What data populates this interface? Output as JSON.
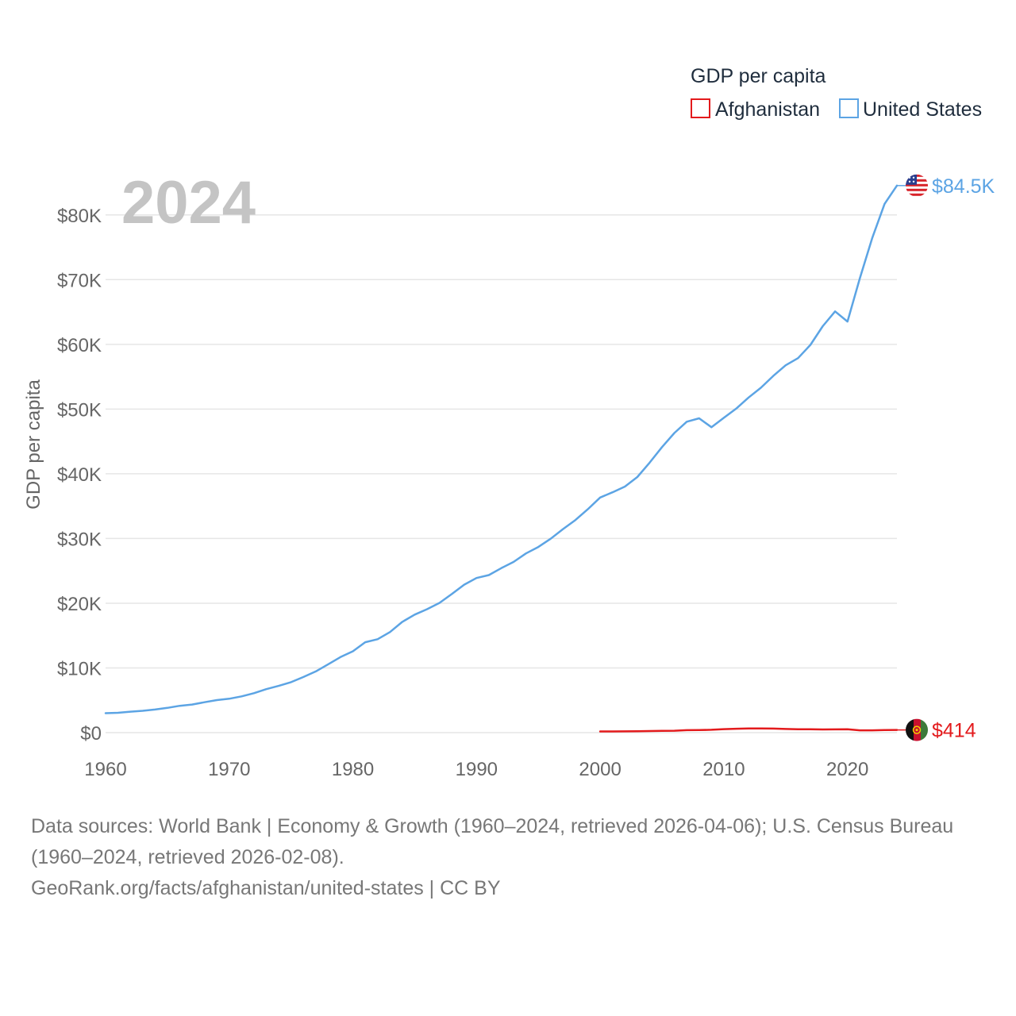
{
  "chart_data": {
    "type": "line",
    "title": "",
    "year_badge": "2024",
    "ylabel": "GDP per capita",
    "xlabel": "",
    "xlim": [
      1960,
      2024
    ],
    "ylim": [
      0,
      85000
    ],
    "x_ticks": [
      {
        "value": 1960,
        "label": "1960"
      },
      {
        "value": 1970,
        "label": "1970"
      },
      {
        "value": 1980,
        "label": "1980"
      },
      {
        "value": 1990,
        "label": "1990"
      },
      {
        "value": 2000,
        "label": "2000"
      },
      {
        "value": 2010,
        "label": "2010"
      },
      {
        "value": 2020,
        "label": "2020"
      }
    ],
    "y_ticks": [
      {
        "value": 0,
        "label": "$0"
      },
      {
        "value": 10000,
        "label": "$10K"
      },
      {
        "value": 20000,
        "label": "$20K"
      },
      {
        "value": 30000,
        "label": "$30K"
      },
      {
        "value": 40000,
        "label": "$40K"
      },
      {
        "value": 50000,
        "label": "$50K"
      },
      {
        "value": 60000,
        "label": "$60K"
      },
      {
        "value": 70000,
        "label": "$70K"
      },
      {
        "value": 80000,
        "label": "$80K"
      }
    ],
    "legend": {
      "title": "GDP per capita",
      "position": "top-right"
    },
    "series": [
      {
        "name": "Afghanistan",
        "color": "#e31a1c",
        "end_label": "$414",
        "flag_icon": "afghanistan-flag-icon",
        "x": [
          2000,
          2001,
          2002,
          2003,
          2004,
          2005,
          2006,
          2007,
          2008,
          2009,
          2010,
          2011,
          2012,
          2013,
          2014,
          2015,
          2016,
          2017,
          2018,
          2019,
          2020,
          2021,
          2022,
          2023,
          2024
        ],
        "values": [
          180,
          180,
          200,
          220,
          240,
          270,
          290,
          380,
          390,
          440,
          540,
          600,
          650,
          640,
          620,
          560,
          520,
          520,
          490,
          500,
          510,
          360,
          350,
          410,
          414
        ]
      },
      {
        "name": "United States",
        "color": "#5ca4e4",
        "end_label": "$84.5K",
        "flag_icon": "united-states-flag-icon",
        "x": [
          1960,
          1961,
          1962,
          1963,
          1964,
          1965,
          1966,
          1967,
          1968,
          1969,
          1970,
          1971,
          1972,
          1973,
          1974,
          1975,
          1976,
          1977,
          1978,
          1979,
          1980,
          1981,
          1982,
          1983,
          1984,
          1985,
          1986,
          1987,
          1988,
          1989,
          1990,
          1991,
          1992,
          1993,
          1994,
          1995,
          1996,
          1997,
          1998,
          1999,
          2000,
          2001,
          2002,
          2003,
          2004,
          2005,
          2006,
          2007,
          2008,
          2009,
          2010,
          2011,
          2012,
          2013,
          2014,
          2015,
          2016,
          2017,
          2018,
          2019,
          2020,
          2021,
          2022,
          2023,
          2024
        ],
        "values": [
          3007,
          3067,
          3244,
          3375,
          3574,
          3828,
          4146,
          4336,
          4696,
          5032,
          5234,
          5609,
          6094,
          6726,
          7226,
          7801,
          8592,
          9453,
          10565,
          11674,
          12575,
          13976,
          14434,
          15544,
          17121,
          18237,
          19071,
          20039,
          21417,
          22857,
          23889,
          24342,
          25419,
          26387,
          27695,
          28691,
          29967,
          31459,
          32854,
          34516,
          36330,
          37134,
          38023,
          39496,
          41713,
          44115,
          46299,
          48050,
          48570,
          47195,
          48651,
          50066,
          51784,
          53291,
          55124,
          56763,
          57867,
          59915,
          62805,
          65095,
          63528,
          70219,
          76399,
          81695,
          84534
        ]
      }
    ]
  },
  "footer": {
    "sources_line": "Data sources: World Bank | Economy & Growth (1960–2024, retrieved 2026-04-06); U.S. Census Bureau (1960–2024, retrieved 2026-02-08).",
    "attribution": "GeoRank.org/facts/afghanistan/united-states | CC BY"
  }
}
